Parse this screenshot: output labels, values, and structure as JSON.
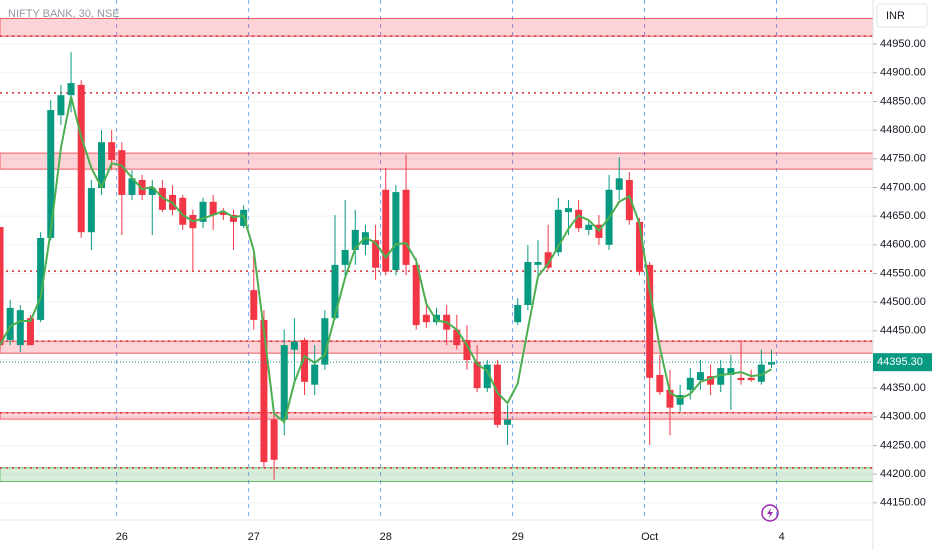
{
  "chart_data": {
    "type": "candlestick",
    "title": "NIFTY BANK, 30, NSE",
    "currency": "INR",
    "categories": [
      null,
      null,
      null,
      null,
      null,
      null,
      null,
      null,
      null,
      null,
      null,
      null,
      "26",
      null,
      null,
      null,
      null,
      null,
      null,
      null,
      null,
      null,
      null,
      null,
      null,
      "27",
      null,
      null,
      null,
      null,
      null,
      null,
      null,
      null,
      null,
      null,
      null,
      null,
      "28",
      null,
      null,
      null,
      null,
      null,
      null,
      null,
      null,
      null,
      null,
      null,
      null,
      "29",
      null,
      null,
      null,
      null,
      null,
      null,
      null,
      null,
      null,
      null,
      null,
      null,
      "Oct",
      null,
      null,
      null,
      null,
      null,
      null,
      null,
      null,
      null,
      null,
      null,
      null,
      "4",
      null,
      null,
      null,
      null,
      null,
      null,
      null,
      null
    ],
    "open": [
      44631,
      44434,
      44425,
      44472,
      44469,
      44612,
      44826,
      44861,
      44879,
      44622,
      44699,
      44779,
      44765,
      44687,
      44713,
      44687,
      44699,
      44687,
      44682,
      44652,
      44640,
      44675,
      44657,
      44652,
      44633,
      44521,
      44469,
      44295,
      44295,
      44417,
      44434,
      44356,
      44391,
      44472,
      44565,
      44591,
      44600,
      44608,
      44696,
      44556,
      44696,
      44565,
      44478,
      44465,
      44478,
      44452,
      44434,
      44396,
      44350,
      44391,
      44286,
      44465,
      44495,
      44565,
      44587,
      44587,
      44657,
      44661,
      44626,
      44635,
      44600,
      44696,
      44713,
      44640,
      44565,
      44373,
      44347,
      44321,
      44347,
      44364,
      44371,
      44356,
      44373,
      44368,
      44368,
      44361,
      44391,
      null,
      null,
      null,
      null,
      null,
      null,
      null,
      null,
      null
    ],
    "high": [
      44631,
      44504,
      44495,
      44478,
      44622,
      44852,
      44879,
      44936,
      44887,
      44713,
      44800,
      44800,
      44779,
      44730,
      44722,
      44713,
      44713,
      44704,
      44687,
      44661,
      44682,
      44687,
      44664,
      44661,
      44669,
      44591,
      44486,
      44312,
      44452,
      44472,
      44438,
      44425,
      44486,
      44652,
      44678,
      44661,
      44635,
      44635,
      44734,
      44704,
      44757,
      44577,
      44504,
      44490,
      44495,
      44478,
      44460,
      44425,
      44399,
      44399,
      44321,
      44507,
      44600,
      44608,
      44635,
      44682,
      44678,
      44678,
      44643,
      44652,
      44722,
      44753,
      44727,
      44647,
      44570,
      44408,
      44382,
      44356,
      44385,
      44399,
      44391,
      44399,
      44408,
      44434,
      44382,
      44417,
      44417,
      null,
      null,
      null,
      null,
      null,
      null,
      null,
      null,
      null
    ],
    "low": [
      44417,
      44425,
      44413,
      44425,
      44465,
      44608,
      44809,
      44831,
      44612,
      44591,
      44687,
      44730,
      44617,
      44678,
      44678,
      44617,
      44657,
      44652,
      44626,
      44556,
      44629,
      44626,
      44643,
      44591,
      44629,
      44452,
      44211,
      44190,
      44268,
      44364,
      44338,
      44338,
      44382,
      44469,
      44547,
      44565,
      44582,
      44539,
      44547,
      44547,
      44547,
      44452,
      44455,
      44460,
      44425,
      44417,
      44382,
      44343,
      44343,
      44281,
      44251,
      44460,
      44486,
      44547,
      44556,
      44580,
      44617,
      44622,
      44617,
      44600,
      44591,
      44678,
      44635,
      44547,
      44251,
      44338,
      44268,
      44309,
      44330,
      44347,
      44338,
      44343,
      44312,
      44356,
      44361,
      44356,
      44385,
      null,
      null,
      null,
      null,
      null,
      null,
      null,
      null,
      null
    ],
    "close": [
      44425,
      44490,
      44486,
      44425,
      44612,
      44835,
      44861,
      44882,
      44622,
      44699,
      44779,
      44748,
      44687,
      44716,
      44687,
      44699,
      44661,
      44661,
      44635,
      44629,
      44675,
      44652,
      44652,
      44640,
      44661,
      44469,
      44221,
      44225,
      44425,
      44431,
      44361,
      44391,
      44472,
      44565,
      44591,
      44626,
      44622,
      44560,
      44553,
      44692,
      44565,
      44460,
      44465,
      44478,
      44452,
      44425,
      44399,
      44350,
      44391,
      44286,
      44295,
      44495,
      44570,
      44570,
      44560,
      44661,
      44664,
      44629,
      44635,
      44612,
      44696,
      44716,
      44643,
      44553,
      44368,
      44343,
      44316,
      44338,
      44368,
      44378,
      44356,
      44385,
      44385,
      44364,
      44364,
      44391,
      44395.3,
      null,
      null,
      null,
      null,
      null,
      null,
      null,
      null,
      null
    ],
    "up_color": "#089981",
    "down_color": "#f23645",
    "ma": {
      "color": "#4caf50",
      "values": [
        44425,
        44458,
        44467,
        44467,
        44508,
        44624,
        44769,
        44859,
        44788,
        44734,
        44700,
        44742,
        44738,
        44717,
        44697,
        44701,
        44682,
        44673,
        44652,
        44641,
        44646,
        44652,
        44659,
        44648,
        44651,
        44590,
        44450,
        44305,
        44291,
        44360,
        44406,
        44394,
        44408,
        44476,
        44543,
        44594,
        44613,
        44603,
        44578,
        44601,
        44603,
        44572,
        44497,
        44468,
        44465,
        44452,
        44425,
        44392,
        44380,
        44342,
        44324,
        44358,
        44453,
        44545,
        44567,
        44597,
        44628,
        44651,
        44643,
        44625,
        44647,
        44675,
        44685,
        44637,
        44521,
        44421,
        44342,
        44332,
        44340,
        44361,
        44367,
        44373,
        44375,
        44378,
        44371,
        44373,
        44383,
        null,
        null,
        null,
        null,
        null,
        null,
        null,
        null,
        null
      ]
    },
    "ylim": [
      44120,
      45027
    ],
    "yticks": [
      {
        "value": 44150,
        "label": "44150.00"
      },
      {
        "value": 44200,
        "label": "44200.00"
      },
      {
        "value": 44250,
        "label": "44250.00"
      },
      {
        "value": 44300,
        "label": "44300.00"
      },
      {
        "value": 44350,
        "label": "44350.00"
      },
      {
        "value": 44400,
        "label": "44400.00"
      },
      {
        "value": 44450,
        "label": "44450.00"
      },
      {
        "value": 44500,
        "label": "44500.00"
      },
      {
        "value": 44550,
        "label": "44550.00"
      },
      {
        "value": 44600,
        "label": "44600.00"
      },
      {
        "value": 44650,
        "label": "44650.00"
      },
      {
        "value": 44700,
        "label": "44700.00"
      },
      {
        "value": 44750,
        "label": "44750.00"
      },
      {
        "value": 44800,
        "label": "44800.00"
      },
      {
        "value": 44850,
        "label": "44850.00"
      },
      {
        "value": 44900,
        "label": "44900.00"
      },
      {
        "value": 44950,
        "label": "44950.00"
      }
    ],
    "last_price": {
      "value": 44395.3,
      "label": "44395.30"
    },
    "zones": [
      {
        "from": 44964,
        "to": 44995,
        "color": "#f23645"
      },
      {
        "from": 44732,
        "to": 44760,
        "color": "#f23645"
      },
      {
        "from": 44411,
        "to": 44432,
        "color": "#f23645"
      },
      {
        "from": 44296,
        "to": 44307,
        "color": "#f23645"
      },
      {
        "from": 44187,
        "to": 44211,
        "color": "#4caf50"
      }
    ],
    "levels": {
      "color": "#d32f2f",
      "values": [
        44964,
        44865,
        44554,
        44432,
        44307,
        44211
      ]
    }
  }
}
